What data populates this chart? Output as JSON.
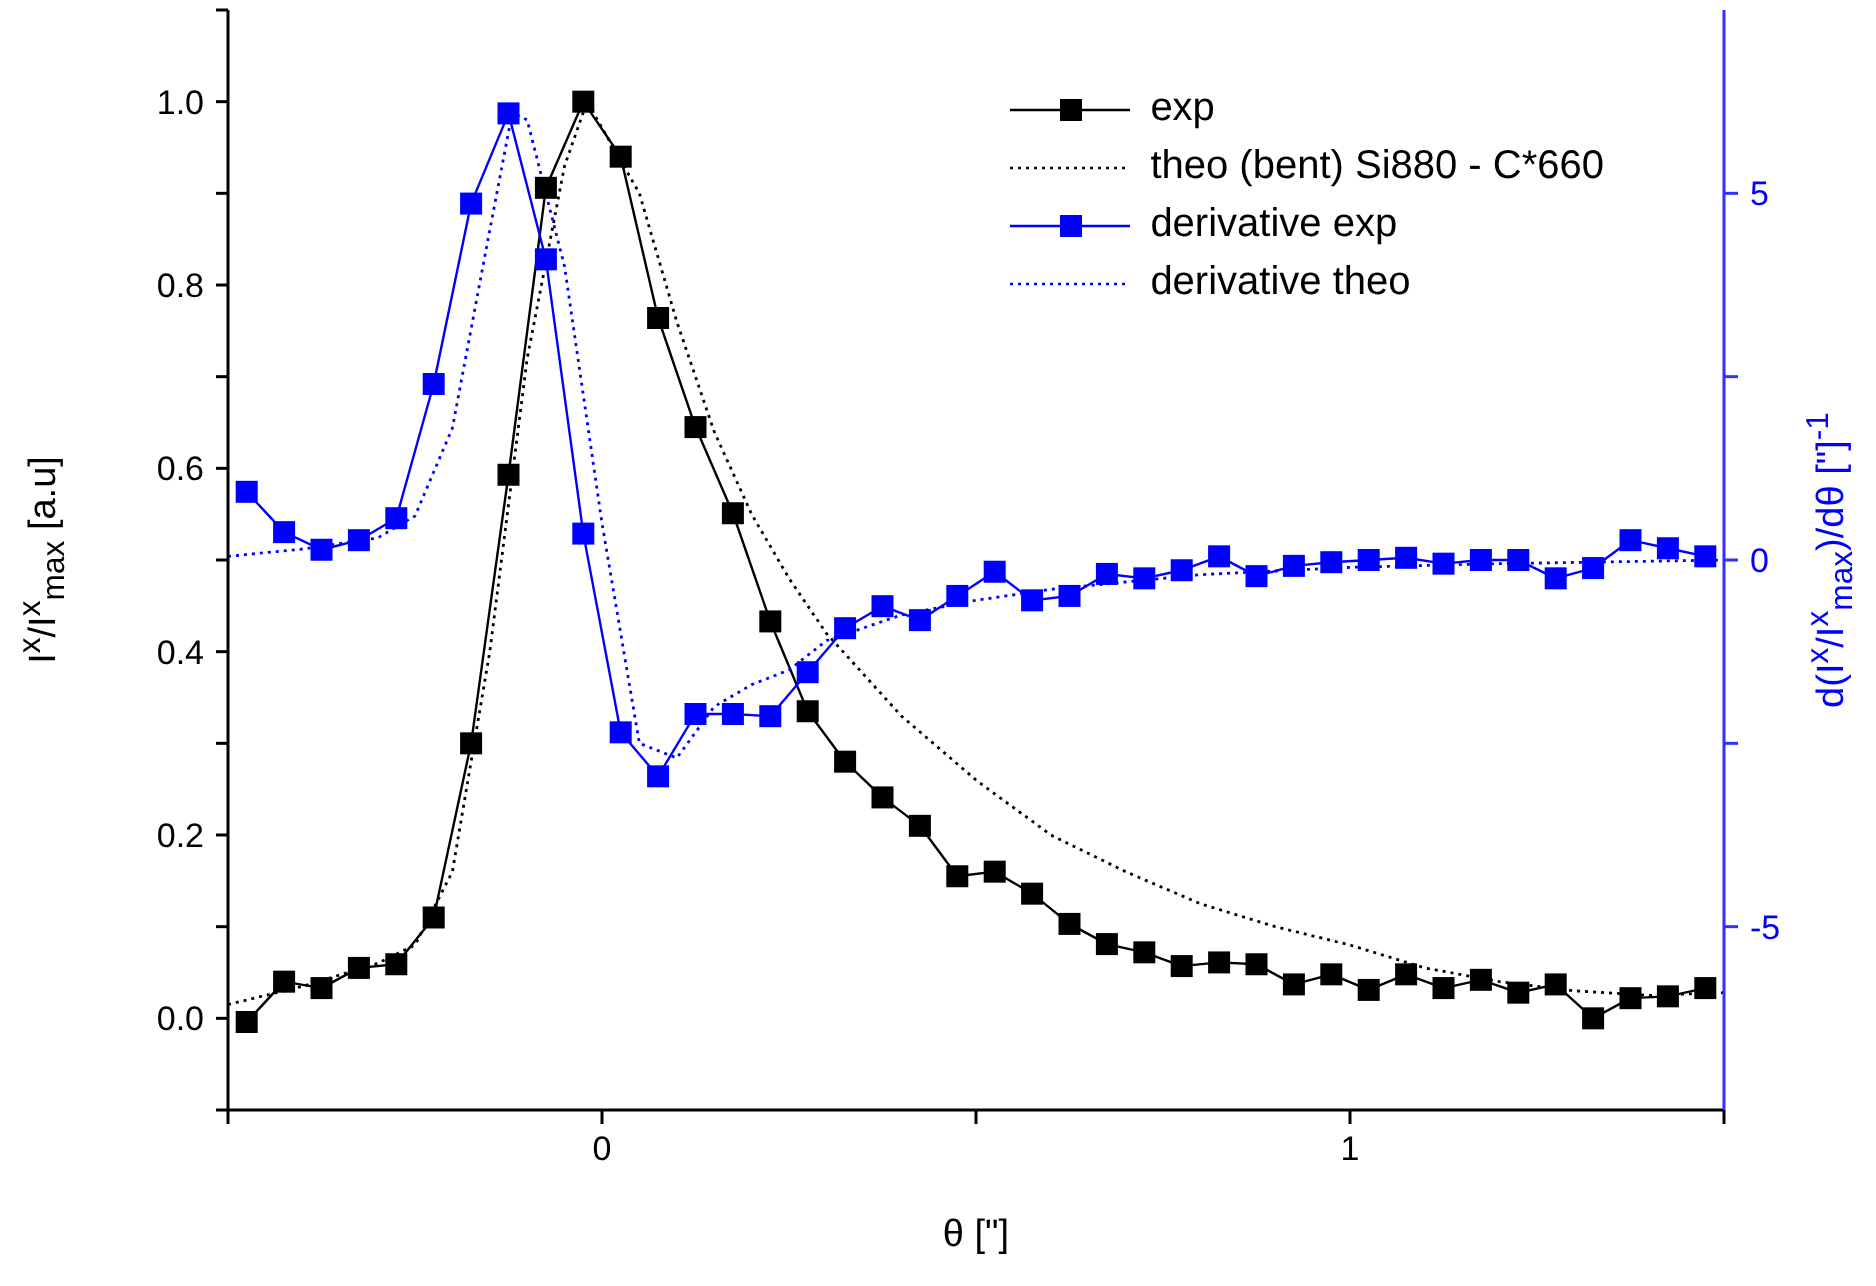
{
  "chart_data": {
    "type": "line",
    "xlabel": "θ [\"]",
    "ylabel": "I$^{x}$/I$^{x}$$_{max}$ [a.u]",
    "y2label": "d(I$^{x}$/I$^{x}$$_{max}$)/dθ [\"]$^{-1}$",
    "xlim": [
      -0.5,
      1.5
    ],
    "xticks": [
      {
        "value": -0.5,
        "label": null
      },
      0,
      {
        "value": 0.5,
        "label": null
      },
      1,
      {
        "value": 1.5,
        "label": null
      }
    ],
    "ylim": [
      -0.1,
      1.1
    ],
    "yticks": [
      {
        "value": -0.1,
        "label": null
      },
      {
        "value": 0,
        "label": "0.0"
      },
      {
        "value": 0.1,
        "label": null
      },
      {
        "value": 0.2,
        "label": "0.2"
      },
      {
        "value": 0.3,
        "label": null
      },
      {
        "value": 0.4,
        "label": "0.4"
      },
      {
        "value": 0.5,
        "label": null
      },
      {
        "value": 0.6,
        "label": "0.6"
      },
      {
        "value": 0.7,
        "label": null
      },
      {
        "value": 0.8,
        "label": "0.8"
      },
      {
        "value": 0.9,
        "label": null
      },
      {
        "value": 1.0,
        "label": "1.0"
      },
      {
        "value": 1.1,
        "label": null
      }
    ],
    "y2lim": [
      -7.5,
      7.5
    ],
    "y2ticks": [
      -5,
      {
        "value": -2.5,
        "label": null
      },
      0,
      {
        "value": 2.5,
        "label": null
      },
      5
    ],
    "grid": false,
    "legend": "top right",
    "series": [
      {
        "name": "exp",
        "type": "line",
        "color": "#000000",
        "marker": "square",
        "line_style": "solid",
        "x": [
          -0.475,
          -0.425,
          -0.375,
          -0.325,
          -0.275,
          -0.225,
          -0.175,
          -0.125,
          -0.075,
          -0.025,
          0.025,
          0.075,
          0.125,
          0.175,
          0.225,
          0.275,
          0.325,
          0.375,
          0.425,
          0.475,
          0.525,
          0.575,
          0.625,
          0.675,
          0.725,
          0.775,
          0.825,
          0.875,
          0.925,
          0.975,
          1.025,
          1.075,
          1.125,
          1.175,
          1.225,
          1.275,
          1.325,
          1.375,
          1.425,
          1.475
        ],
        "values": [
          -0.004,
          0.04,
          0.033,
          0.055,
          0.059,
          0.11,
          0.3,
          0.593,
          0.906,
          1.0,
          0.94,
          0.764,
          0.645,
          0.551,
          0.433,
          0.335,
          0.28,
          0.241,
          0.21,
          0.155,
          0.16,
          0.136,
          0.103,
          0.081,
          0.072,
          0.057,
          0.061,
          0.059,
          0.037,
          0.048,
          0.031,
          0.048,
          0.033,
          0.042,
          0.028,
          0.037,
          0.0,
          0.022,
          0.024,
          0.033
        ]
      },
      {
        "name": "theo (bent) Si880 - C*660",
        "type": "line",
        "color": "#000000",
        "marker": "none",
        "line_style": "dotted",
        "x": [
          -0.5,
          -0.4,
          -0.3,
          -0.25,
          -0.2,
          -0.15,
          -0.1,
          -0.05,
          -0.02,
          0.05,
          0.1,
          0.15,
          0.2,
          0.25,
          0.3,
          0.4,
          0.5,
          0.6,
          0.7,
          0.8,
          0.9,
          1.0,
          1.1,
          1.2,
          1.3,
          1.4,
          1.5
        ],
        "values": [
          0.015,
          0.035,
          0.06,
          0.08,
          0.16,
          0.4,
          0.72,
          0.93,
          1.0,
          0.9,
          0.76,
          0.64,
          0.55,
          0.48,
          0.42,
          0.33,
          0.26,
          0.2,
          0.16,
          0.125,
          0.1,
          0.08,
          0.055,
          0.04,
          0.03,
          0.025,
          0.028
        ]
      },
      {
        "name": "derivative exp",
        "type": "line",
        "axis": "y2",
        "color": "#0000ff",
        "marker": "square",
        "line_style": "solid",
        "x": [
          -0.475,
          -0.425,
          -0.375,
          -0.325,
          -0.275,
          -0.225,
          -0.175,
          -0.125,
          -0.075,
          -0.025,
          0.025,
          0.075,
          0.125,
          0.175,
          0.225,
          0.275,
          0.325,
          0.375,
          0.425,
          0.475,
          0.525,
          0.575,
          0.625,
          0.675,
          0.725,
          0.775,
          0.825,
          0.875,
          0.925,
          0.975,
          1.025,
          1.075,
          1.125,
          1.175,
          1.225,
          1.275,
          1.325,
          1.375,
          1.425,
          1.475
        ],
        "values": [
          0.93,
          0.38,
          0.14,
          0.27,
          0.57,
          2.4,
          4.86,
          6.09,
          4.1,
          0.36,
          -2.35,
          -2.95,
          -2.1,
          -2.1,
          -2.13,
          -1.53,
          -0.93,
          -0.63,
          -0.82,
          -0.49,
          -0.16,
          -0.55,
          -0.49,
          -0.19,
          -0.25,
          -0.14,
          0.05,
          -0.22,
          -0.08,
          -0.03,
          0.0,
          0.03,
          -0.05,
          0.0,
          0.0,
          -0.25,
          -0.11,
          0.27,
          0.16,
          0.05
        ]
      },
      {
        "name": "derivative theo",
        "type": "line",
        "axis": "y2",
        "color": "#0000ff",
        "marker": "none",
        "line_style": "dotted",
        "x": [
          -0.5,
          -0.4,
          -0.3,
          -0.25,
          -0.2,
          -0.15,
          -0.12,
          -0.1,
          -0.05,
          0.0,
          0.05,
          0.1,
          0.15,
          0.2,
          0.25,
          0.3,
          0.4,
          0.5,
          0.6,
          0.7,
          0.8,
          0.9,
          1.0,
          1.2,
          1.5
        ],
        "values": [
          0.05,
          0.15,
          0.3,
          0.6,
          1.8,
          4.5,
          6.1,
          6.0,
          4.0,
          0.5,
          -2.5,
          -2.7,
          -2.0,
          -1.7,
          -1.5,
          -1.1,
          -0.75,
          -0.55,
          -0.4,
          -0.3,
          -0.2,
          -0.15,
          -0.1,
          -0.05,
          0.0
        ]
      }
    ]
  }
}
